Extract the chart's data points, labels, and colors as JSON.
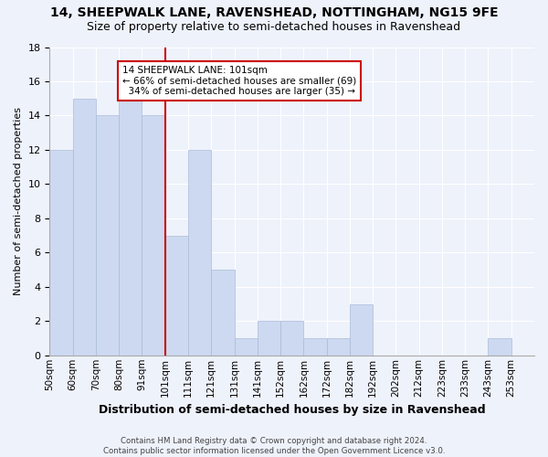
{
  "title_line1": "14, SHEEPWALK LANE, RAVENSHEAD, NOTTINGHAM, NG15 9FE",
  "title_line2": "Size of property relative to semi-detached houses in Ravenshead",
  "xlabel": "Distribution of semi-detached houses by size in Ravenshead",
  "ylabel": "Number of semi-detached properties",
  "footnote": "Contains HM Land Registry data © Crown copyright and database right 2024.\nContains public sector information licensed under the Open Government Licence v3.0.",
  "bin_labels": [
    "50sqm",
    "60sqm",
    "70sqm",
    "80sqm",
    "91sqm",
    "101sqm",
    "111sqm",
    "121sqm",
    "131sqm",
    "141sqm",
    "152sqm",
    "162sqm",
    "172sqm",
    "182sqm",
    "192sqm",
    "202sqm",
    "212sqm",
    "223sqm",
    "233sqm",
    "243sqm",
    "253sqm"
  ],
  "counts": [
    12,
    15,
    14,
    15,
    14,
    7,
    12,
    5,
    1,
    2,
    2,
    1,
    1,
    3,
    0,
    0,
    0,
    0,
    0,
    1,
    0
  ],
  "vline_position": 5,
  "bar_color": "#ccd9f0",
  "bar_edge_color": "#aabbd8",
  "vline_color": "#cc0000",
  "annotation_text": "14 SHEEPWALK LANE: 101sqm\n← 66% of semi-detached houses are smaller (69)\n  34% of semi-detached houses are larger (35) →",
  "annotation_box_color": "#ffffff",
  "annotation_box_edge": "#cc0000",
  "ylim": [
    0,
    18
  ],
  "yticks": [
    0,
    2,
    4,
    6,
    8,
    10,
    12,
    14,
    16,
    18
  ],
  "background_color": "#eef2fb",
  "grid_color": "#ffffff",
  "title_fontsize": 10,
  "subtitle_fontsize": 9
}
